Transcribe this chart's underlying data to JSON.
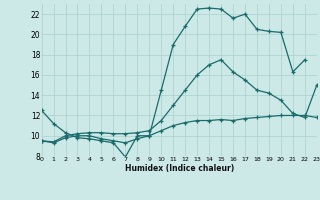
{
  "xlabel": "Humidex (Indice chaleur)",
  "bg_color": "#cce9e8",
  "grid_color": "#afd4d0",
  "line_color": "#1a6b6b",
  "xlim": [
    0,
    23
  ],
  "ylim": [
    8,
    23
  ],
  "xticks": [
    0,
    1,
    2,
    3,
    4,
    5,
    6,
    7,
    8,
    9,
    10,
    11,
    12,
    13,
    14,
    15,
    16,
    17,
    18,
    19,
    20,
    21,
    22,
    23
  ],
  "yticks": [
    8,
    10,
    12,
    14,
    16,
    18,
    20,
    22
  ],
  "curves": [
    {
      "x": [
        0,
        1,
        2,
        3,
        4,
        5,
        6,
        7,
        8,
        9,
        10,
        11,
        12,
        13,
        14,
        15,
        16,
        17,
        18,
        19,
        20,
        21,
        22
      ],
      "y": [
        12.5,
        11.2,
        10.3,
        9.8,
        9.7,
        9.5,
        9.3,
        7.9,
        10.0,
        10.0,
        14.5,
        19.0,
        20.8,
        22.5,
        22.6,
        22.5,
        21.6,
        22.0,
        20.5,
        20.3,
        20.2,
        16.3,
        17.5
      ]
    },
    {
      "x": [
        0,
        1,
        2,
        3,
        4,
        5,
        6,
        7,
        8,
        9,
        10,
        11,
        12,
        13,
        14,
        15,
        16,
        17,
        18,
        19,
        20,
        21,
        22,
        23
      ],
      "y": [
        9.5,
        9.3,
        9.8,
        10.0,
        10.0,
        9.7,
        9.5,
        9.3,
        9.7,
        10.0,
        10.5,
        11.0,
        11.3,
        11.5,
        11.5,
        11.6,
        11.5,
        11.7,
        11.8,
        11.9,
        12.0,
        12.0,
        12.0,
        11.8
      ]
    },
    {
      "x": [
        0,
        1,
        2,
        3,
        4,
        5,
        6,
        7,
        8,
        9,
        10,
        11,
        12,
        13,
        14,
        15,
        16,
        17,
        18,
        19,
        20,
        21,
        22,
        23
      ],
      "y": [
        9.5,
        9.4,
        10.0,
        10.2,
        10.3,
        10.3,
        10.2,
        10.2,
        10.3,
        10.5,
        11.5,
        13.0,
        14.5,
        16.0,
        17.0,
        17.5,
        16.3,
        15.5,
        14.5,
        14.2,
        13.5,
        12.2,
        11.8,
        15.0
      ]
    }
  ]
}
